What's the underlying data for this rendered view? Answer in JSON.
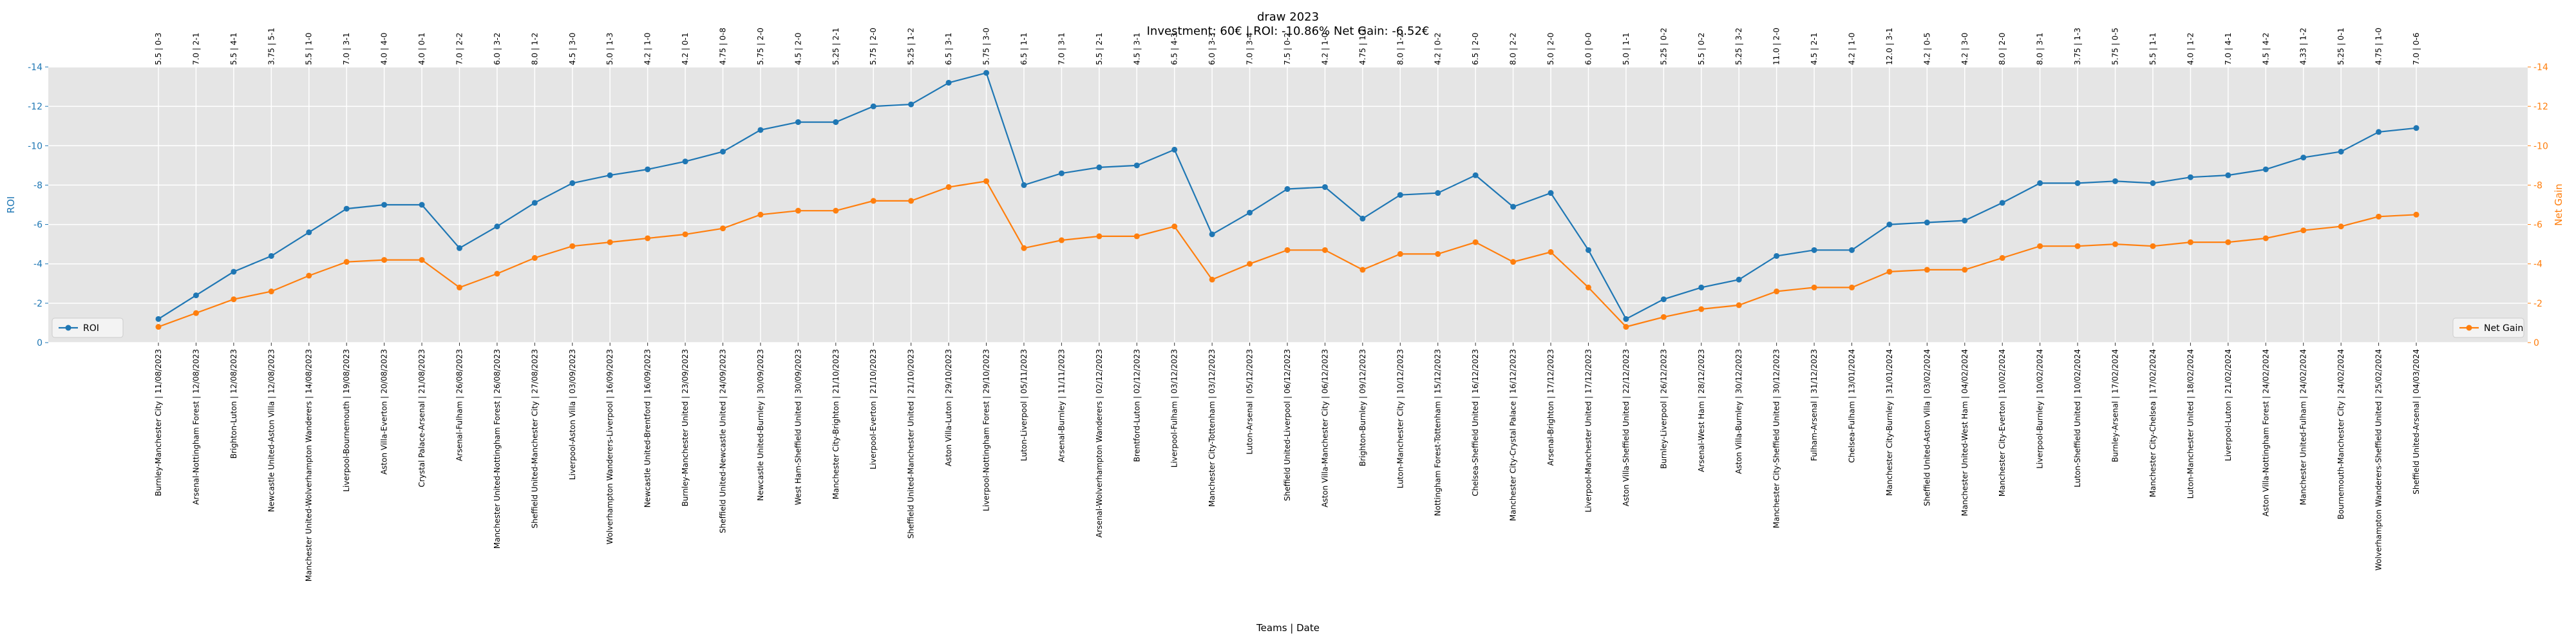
{
  "chart_data": {
    "type": "line",
    "title": "draw 2023",
    "subtitle": "Investment: 60€ | ROI: -10.86% Net Gain: -6.52€",
    "xlabel": "Teams | Date",
    "ylabel_left": "ROI",
    "ylabel_right": "Net Gain",
    "ylim_left": [
      -14,
      0
    ],
    "ylim_right": [
      -14,
      0
    ],
    "yticks": [
      0,
      -2,
      -4,
      -6,
      -8,
      -10,
      -12,
      -14
    ],
    "grid": true,
    "legend_left": "bottom-left",
    "legend_right": "bottom-right",
    "colors": {
      "roi": "#1f77b4",
      "net_gain": "#ff7f0e",
      "plot_bg": "#e5e5e5",
      "grid": "#ffffff"
    },
    "categories": [
      "Burnley-Manchester City | 11/08/2023",
      "Arsenal-Nottingham Forest | 12/08/2023",
      "Brighton-Luton | 12/08/2023",
      "Newcastle United-Aston Villa | 12/08/2023",
      "Manchester United-Wolverhampton Wanderers | 14/08/2023",
      "Liverpool-Bournemouth | 19/08/2023",
      "Aston Villa-Everton | 20/08/2023",
      "Crystal Palace-Arsenal | 21/08/2023",
      "Arsenal-Fulham | 26/08/2023",
      "Manchester United-Nottingham Forest | 26/08/2023",
      "Sheffield United-Manchester City | 27/08/2023",
      "Liverpool-Aston Villa | 03/09/2023",
      "Wolverhampton Wanderers-Liverpool | 16/09/2023",
      "Newcastle United-Brentford | 16/09/2023",
      "Burnley-Manchester United | 23/09/2023",
      "Sheffield United-Newcastle United | 24/09/2023",
      "Newcastle United-Burnley | 30/09/2023",
      "West Ham-Sheffield United | 30/09/2023",
      "Manchester City-Brighton | 21/10/2023",
      "Liverpool-Everton | 21/10/2023",
      "Sheffield United-Manchester United | 21/10/2023",
      "Aston Villa-Luton | 29/10/2023",
      "Liverpool-Nottingham Forest | 29/10/2023",
      "Luton-Liverpool | 05/11/2023",
      "Arsenal-Burnley | 11/11/2023",
      "Arsenal-Wolverhampton Wanderers | 02/12/2023",
      "Brentford-Luton | 02/12/2023",
      "Liverpool-Fulham | 03/12/2023",
      "Manchester City-Tottenham | 03/12/2023",
      "Luton-Arsenal | 05/12/2023",
      "Sheffield United-Liverpool | 06/12/2023",
      "Aston Villa-Manchester City | 06/12/2023",
      "Brighton-Burnley | 09/12/2023",
      "Luton-Manchester City | 10/12/2023",
      "Nottingham Forest-Tottenham | 15/12/2023",
      "Chelsea-Sheffield United | 16/12/2023",
      "Manchester City-Crystal Palace | 16/12/2023",
      "Arsenal-Brighton | 17/12/2023",
      "Liverpool-Manchester United | 17/12/2023",
      "Aston Villa-Sheffield United | 22/12/2023",
      "Burnley-Liverpool | 26/12/2023",
      "Arsenal-West Ham | 28/12/2023",
      "Aston Villa-Burnley | 30/12/2023",
      "Manchester City-Sheffield United | 30/12/2023",
      "Fulham-Arsenal | 31/12/2023",
      "Chelsea-Fulham | 13/01/2024",
      "Manchester City-Burnley | 31/01/2024",
      "Sheffield United-Aston Villa | 03/02/2024",
      "Manchester United-West Ham | 04/02/2024",
      "Manchester City-Everton | 10/02/2024",
      "Liverpool-Burnley | 10/02/2024",
      "Luton-Sheffield United | 10/02/2024",
      "Burnley-Arsenal | 17/02/2024",
      "Manchester City-Chelsea | 17/02/2024",
      "Luton-Manchester United | 18/02/2024",
      "Liverpool-Luton | 21/02/2024",
      "Aston Villa-Nottingham Forest | 24/02/2024",
      "Manchester United-Fulham | 24/02/2024",
      "Bournemouth-Manchester City | 24/02/2024",
      "Wolverhampton Wanderers-Sheffield United | 25/02/2024",
      "Sheffield United-Arsenal | 04/03/2024"
    ],
    "top_labels": [
      "5.5 | 0-3",
      "7.0 | 2-1",
      "5.5 | 4-1",
      "3.75 | 5-1",
      "5.5 | 1-0",
      "7.0 | 3-1",
      "4.0 | 4-0",
      "4.0 | 0-1",
      "7.0 | 2-2",
      "6.0 | 3-2",
      "8.0 | 1-2",
      "4.5 | 3-0",
      "5.0 | 1-3",
      "4.2 | 1-0",
      "4.2 | 0-1",
      "4.75 | 0-8",
      "5.75 | 2-0",
      "4.5 | 2-0",
      "5.25 | 2-1",
      "5.75 | 2-0",
      "5.25 | 1-2",
      "6.5 | 3-1",
      "5.75 | 3-0",
      "6.5 | 1-1",
      "7.0 | 3-1",
      "5.5 | 2-1",
      "4.5 | 3-1",
      "6.5 | 4-3",
      "6.0 | 3-3",
      "7.0 | 3-4",
      "7.5 | 0-2",
      "4.2 | 1-0",
      "4.75 | 1-1",
      "8.0 | 1-2",
      "4.2 | 0-2",
      "6.5 | 2-0",
      "8.0 | 2-2",
      "5.0 | 2-0",
      "6.0 | 0-0",
      "5.0 | 1-1",
      "5.25 | 0-2",
      "5.5 | 0-2",
      "5.25 | 3-2",
      "11.0 | 2-0",
      "4.5 | 2-1",
      "4.2 | 1-0",
      "12.0 | 3-1",
      "4.2 | 0-5",
      "4.2 | 3-0",
      "8.0 | 2-0",
      "8.0 | 3-1",
      "3.75 | 1-3",
      "5.75 | 0-5",
      "5.5 | 1-1",
      "4.0 | 1-2",
      "7.0 | 4-1",
      "4.5 | 4-2",
      "4.33 | 1-2",
      "5.25 | 0-1",
      "4.75 | 1-0",
      "7.0 | 0-6"
    ],
    "series": [
      {
        "name": "ROI",
        "axis": "left",
        "values": [
          -1.2,
          -2.4,
          -3.6,
          -4.4,
          -5.6,
          -6.8,
          -7.0,
          -7.0,
          -4.8,
          -5.9,
          -7.1,
          -8.1,
          -8.5,
          -8.8,
          -9.2,
          -9.7,
          -10.8,
          -11.2,
          -11.2,
          -12.0,
          -12.1,
          -13.2,
          -13.7,
          -8.0,
          -8.6,
          -8.9,
          -9.0,
          -9.8,
          -5.5,
          -6.6,
          -7.8,
          -7.9,
          -6.3,
          -7.5,
          -7.6,
          -8.5,
          -6.9,
          -7.6,
          -4.7,
          -1.2,
          -2.2,
          -2.8,
          -3.2,
          -4.4,
          -4.7,
          -4.7,
          -6.0,
          -6.1,
          -6.2,
          -7.1,
          -8.1,
          -8.1,
          -8.2,
          -8.1,
          -8.4,
          -8.5,
          -8.8,
          -9.4,
          -9.7,
          -10.7,
          -10.9
        ]
      },
      {
        "name": "Net Gain",
        "axis": "right",
        "values": [
          -0.8,
          -1.5,
          -2.2,
          -2.6,
          -3.4,
          -4.1,
          -4.2,
          -4.2,
          -2.8,
          -3.5,
          -4.3,
          -4.9,
          -5.1,
          -5.3,
          -5.5,
          -5.8,
          -6.5,
          -6.7,
          -6.7,
          -7.2,
          -7.2,
          -7.9,
          -8.2,
          -4.8,
          -5.2,
          -5.4,
          -5.4,
          -5.9,
          -3.2,
          -4.0,
          -4.7,
          -4.7,
          -3.7,
          -4.5,
          -4.5,
          -5.1,
          -4.1,
          -4.6,
          -2.8,
          -0.8,
          -1.3,
          -1.7,
          -1.9,
          -2.6,
          -2.8,
          -2.8,
          -3.6,
          -3.7,
          -3.7,
          -4.3,
          -4.9,
          -4.9,
          -5.0,
          -4.9,
          -5.1,
          -5.1,
          -5.3,
          -5.7,
          -5.9,
          -6.4,
          -6.5
        ]
      }
    ]
  }
}
